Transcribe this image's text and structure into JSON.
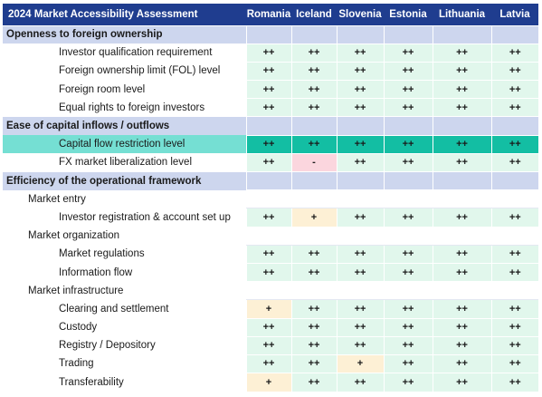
{
  "title": "2024 Market Accessibility Assessment",
  "countries": [
    "Romania",
    "Iceland",
    "Slovenia",
    "Estonia",
    "Lithuania",
    "Latvia"
  ],
  "rows": [
    {
      "kind": "section",
      "label": "Openness to foreign ownership"
    },
    {
      "kind": "item",
      "label": "Investor qualification requirement",
      "values": [
        "++",
        "++",
        "++",
        "++",
        "++",
        "++"
      ],
      "states": [
        "g",
        "g",
        "g",
        "g",
        "g",
        "g"
      ]
    },
    {
      "kind": "item",
      "label": "Foreign ownership limit (FOL) level",
      "values": [
        "++",
        "++",
        "++",
        "++",
        "++",
        "++"
      ],
      "states": [
        "g",
        "g",
        "g",
        "g",
        "g",
        "g"
      ]
    },
    {
      "kind": "item",
      "label": "Foreign room level",
      "values": [
        "++",
        "++",
        "++",
        "++",
        "++",
        "++"
      ],
      "states": [
        "g",
        "g",
        "g",
        "g",
        "g",
        "g"
      ]
    },
    {
      "kind": "item",
      "label": "Equal rights to foreign investors",
      "values": [
        "++",
        "++",
        "++",
        "++",
        "++",
        "++"
      ],
      "states": [
        "g",
        "g",
        "g",
        "g",
        "g",
        "g"
      ]
    },
    {
      "kind": "section",
      "label": "Ease of capital inflows / outflows"
    },
    {
      "kind": "item",
      "label": "Capital flow restriction level",
      "values": [
        "++",
        "++",
        "++",
        "++",
        "++",
        "++"
      ],
      "states": [
        "g",
        "g",
        "g",
        "g",
        "g",
        "g"
      ],
      "highlight": true
    },
    {
      "kind": "item",
      "label": "FX market liberalization level",
      "values": [
        "++",
        "-",
        "++",
        "++",
        "++",
        "++"
      ],
      "states": [
        "g",
        "r",
        "g",
        "g",
        "g",
        "g"
      ]
    },
    {
      "kind": "section",
      "label": "Efficiency of the operational framework"
    },
    {
      "kind": "sub",
      "label": "Market entry"
    },
    {
      "kind": "item",
      "label": "Investor registration & account set up",
      "values": [
        "++",
        "+",
        "++",
        "++",
        "++",
        "++"
      ],
      "states": [
        "g",
        "y",
        "g",
        "g",
        "g",
        "g"
      ]
    },
    {
      "kind": "sub",
      "label": "Market organization"
    },
    {
      "kind": "item",
      "label": "Market regulations",
      "values": [
        "++",
        "++",
        "++",
        "++",
        "++",
        "++"
      ],
      "states": [
        "g",
        "g",
        "g",
        "g",
        "g",
        "g"
      ]
    },
    {
      "kind": "item",
      "label": "Information flow",
      "values": [
        "++",
        "++",
        "++",
        "++",
        "++",
        "++"
      ],
      "states": [
        "g",
        "g",
        "g",
        "g",
        "g",
        "g"
      ]
    },
    {
      "kind": "sub",
      "label": "Market infrastructure"
    },
    {
      "kind": "item",
      "label": "Clearing and settlement",
      "values": [
        "+",
        "++",
        "++",
        "++",
        "++",
        "++"
      ],
      "states": [
        "y",
        "g",
        "g",
        "g",
        "g",
        "g"
      ]
    },
    {
      "kind": "item",
      "label": "Custody",
      "values": [
        "++",
        "++",
        "++",
        "++",
        "++",
        "++"
      ],
      "states": [
        "g",
        "g",
        "g",
        "g",
        "g",
        "g"
      ]
    },
    {
      "kind": "item",
      "label": "Registry / Depository",
      "values": [
        "++",
        "++",
        "++",
        "++",
        "++",
        "++"
      ],
      "states": [
        "g",
        "g",
        "g",
        "g",
        "g",
        "g"
      ]
    },
    {
      "kind": "item",
      "label": "Trading",
      "values": [
        "++",
        "++",
        "+",
        "++",
        "++",
        "++"
      ],
      "states": [
        "g",
        "g",
        "y",
        "g",
        "g",
        "g"
      ]
    },
    {
      "kind": "item",
      "label": "Transferability",
      "values": [
        "+",
        "++",
        "++",
        "++",
        "++",
        "++"
      ],
      "states": [
        "y",
        "g",
        "g",
        "g",
        "g",
        "g"
      ]
    }
  ],
  "colors": {
    "header": "#1f3d8f",
    "section": "#cdd6ee",
    "good": "#e1f7ec",
    "medium": "#fdf0d5",
    "bad": "#fbd6de",
    "highlight": "#13bea3"
  }
}
